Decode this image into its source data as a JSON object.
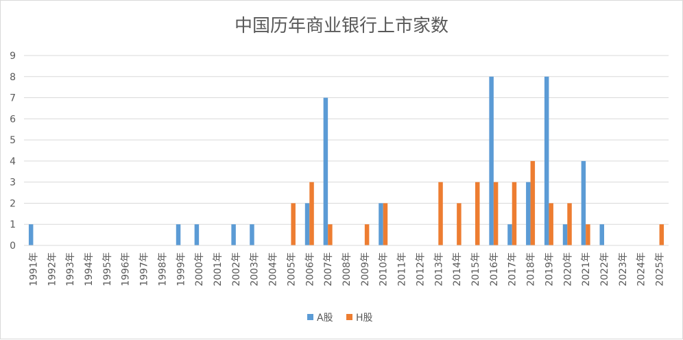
{
  "chart_data": {
    "type": "bar",
    "title": "中国历年商业银行上市家数",
    "xlabel": "",
    "ylabel": "",
    "ylim": [
      0,
      9
    ],
    "yticks": [
      0,
      1,
      2,
      3,
      4,
      5,
      6,
      7,
      8,
      9
    ],
    "grid": true,
    "legend_position": "bottom",
    "categories": [
      "1991年",
      "1992年",
      "1993年",
      "1994年",
      "1995年",
      "1996年",
      "1997年",
      "1998年",
      "1999年",
      "2000年",
      "2001年",
      "2002年",
      "2003年",
      "2004年",
      "2005年",
      "2006年",
      "2007年",
      "2008年",
      "2009年",
      "2010年",
      "2011年",
      "2012年",
      "2013年",
      "2014年",
      "2015年",
      "2016年",
      "2017年",
      "2018年",
      "2019年",
      "2020年",
      "2021年",
      "2022年",
      "2023年",
      "2024年",
      "2025年"
    ],
    "series": [
      {
        "name": "A股",
        "color": "#5b9bd5",
        "values": [
          1,
          0,
          0,
          0,
          0,
          0,
          0,
          0,
          1,
          1,
          0,
          1,
          1,
          0,
          0,
          2,
          7,
          0,
          0,
          2,
          0,
          0,
          0,
          0,
          0,
          8,
          1,
          3,
          8,
          1,
          4,
          1,
          0,
          0,
          0
        ]
      },
      {
        "name": "H股",
        "color": "#ed7d31",
        "values": [
          0,
          0,
          0,
          0,
          0,
          0,
          0,
          0,
          0,
          0,
          0,
          0,
          0,
          0,
          2,
          3,
          1,
          0,
          1,
          2,
          0,
          0,
          3,
          2,
          3,
          3,
          3,
          4,
          2,
          2,
          1,
          0,
          0,
          0,
          1
        ]
      }
    ]
  }
}
